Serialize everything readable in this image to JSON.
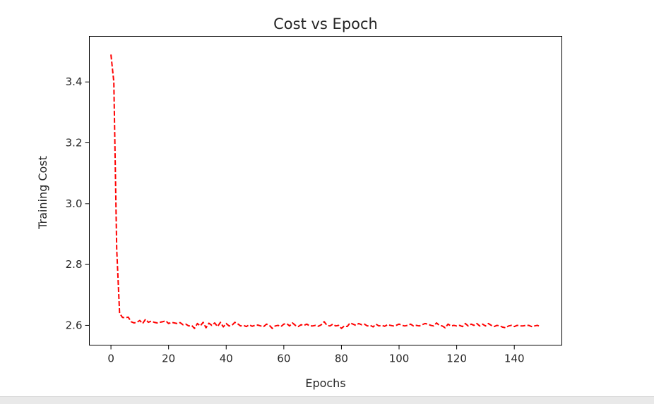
{
  "chart_data": {
    "type": "line",
    "title": "Cost vs Epoch",
    "xlabel": "Epochs",
    "ylabel": "Training Cost",
    "xlim": [
      -7.5,
      156.5
    ],
    "ylim": [
      2.535,
      3.55
    ],
    "xticks": [
      0,
      20,
      40,
      60,
      80,
      100,
      120,
      140
    ],
    "xtick_labels": [
      "0",
      "20",
      "40",
      "60",
      "80",
      "100",
      "120",
      "140"
    ],
    "yticks": [
      2.6,
      2.8,
      3.0,
      3.2,
      3.4
    ],
    "ytick_labels": [
      "2.6",
      "2.8",
      "3.0",
      "3.2",
      "3.4"
    ],
    "grid": false,
    "legend": "none",
    "series": [
      {
        "color": "#ff0000",
        "linestyle": "dashed",
        "x": [
          0,
          1,
          2,
          3,
          4,
          5,
          6,
          7,
          8,
          9,
          10,
          11,
          12,
          13,
          14,
          15,
          16,
          17,
          18,
          19,
          20,
          21,
          22,
          23,
          24,
          25,
          26,
          27,
          28,
          29,
          30,
          31,
          32,
          33,
          34,
          35,
          36,
          37,
          38,
          39,
          40,
          41,
          42,
          43,
          44,
          45,
          46,
          47,
          48,
          49,
          50,
          51,
          52,
          53,
          54,
          55,
          56,
          57,
          58,
          59,
          60,
          61,
          62,
          63,
          64,
          65,
          66,
          67,
          68,
          69,
          70,
          71,
          72,
          73,
          74,
          75,
          76,
          77,
          78,
          79,
          80,
          81,
          82,
          83,
          84,
          85,
          86,
          87,
          88,
          89,
          90,
          91,
          92,
          93,
          94,
          95,
          96,
          97,
          98,
          99,
          100,
          101,
          102,
          103,
          104,
          105,
          106,
          107,
          108,
          109,
          110,
          111,
          112,
          113,
          114,
          115,
          116,
          117,
          118,
          119,
          120,
          121,
          122,
          123,
          124,
          125,
          126,
          127,
          128,
          129,
          130,
          131,
          132,
          133,
          134,
          135,
          136,
          137,
          138,
          139,
          140,
          141,
          142,
          143,
          144,
          145,
          146,
          147,
          148,
          149
        ],
        "y": [
          3.49,
          3.4,
          2.85,
          2.64,
          2.626,
          2.625,
          2.627,
          2.612,
          2.608,
          2.61,
          2.616,
          2.606,
          2.62,
          2.61,
          2.614,
          2.61,
          2.608,
          2.61,
          2.612,
          2.615,
          2.606,
          2.61,
          2.608,
          2.606,
          2.609,
          2.602,
          2.604,
          2.598,
          2.6,
          2.59,
          2.606,
          2.598,
          2.61,
          2.592,
          2.607,
          2.6,
          2.608,
          2.596,
          2.61,
          2.595,
          2.606,
          2.598,
          2.6,
          2.61,
          2.605,
          2.598,
          2.6,
          2.596,
          2.602,
          2.597,
          2.6,
          2.601,
          2.598,
          2.596,
          2.604,
          2.6,
          2.59,
          2.598,
          2.6,
          2.596,
          2.604,
          2.606,
          2.598,
          2.608,
          2.6,
          2.596,
          2.602,
          2.6,
          2.604,
          2.598,
          2.598,
          2.6,
          2.597,
          2.602,
          2.612,
          2.6,
          2.598,
          2.604,
          2.598,
          2.6,
          2.59,
          2.598,
          2.596,
          2.608,
          2.604,
          2.6,
          2.606,
          2.602,
          2.604,
          2.598,
          2.6,
          2.595,
          2.604,
          2.598,
          2.6,
          2.597,
          2.602,
          2.6,
          2.598,
          2.6,
          2.604,
          2.6,
          2.598,
          2.6,
          2.604,
          2.598,
          2.6,
          2.598,
          2.602,
          2.606,
          2.604,
          2.6,
          2.598,
          2.608,
          2.6,
          2.598,
          2.592,
          2.604,
          2.598,
          2.6,
          2.598,
          2.6,
          2.596,
          2.606,
          2.598,
          2.604,
          2.6,
          2.606,
          2.598,
          2.604,
          2.598,
          2.606,
          2.6,
          2.596,
          2.6,
          2.598,
          2.594,
          2.592,
          2.598,
          2.6,
          2.596,
          2.6,
          2.598,
          2.598,
          2.6,
          2.6,
          2.596,
          2.598,
          2.6,
          2.596
        ]
      }
    ]
  }
}
